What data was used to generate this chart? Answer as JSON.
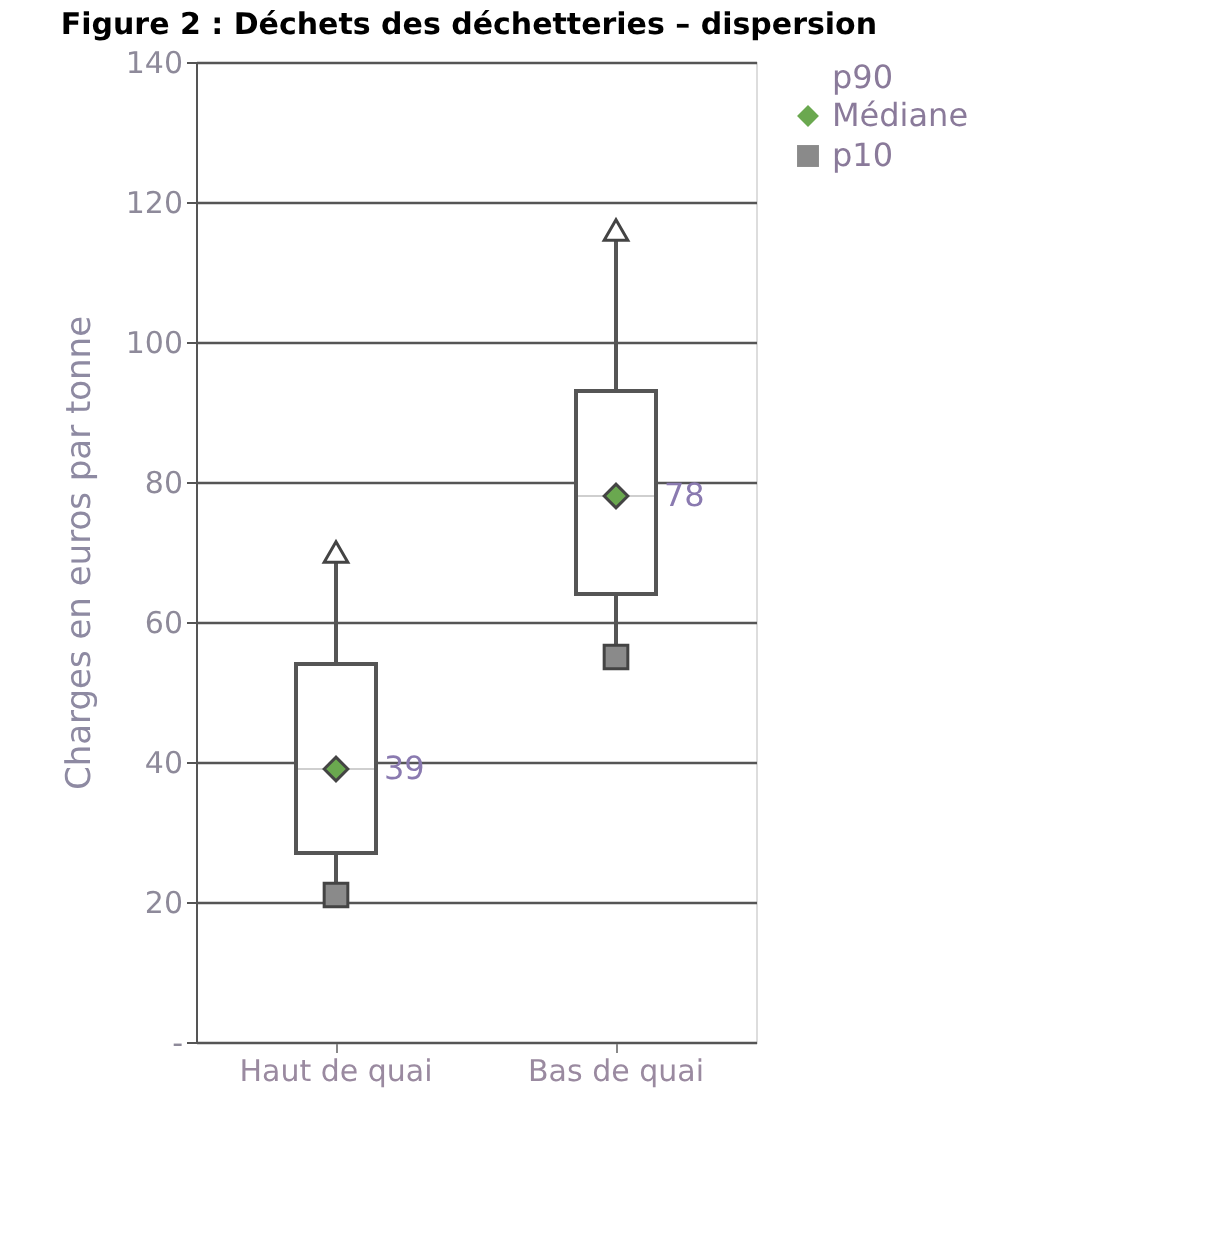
{
  "chart_data": {
    "type": "box",
    "title": "Figure 2 : Déchets des déchetteries – dispersion",
    "ylabel": "Charges en euros par tonne",
    "categories": [
      "Haut de quai",
      "Bas de quai"
    ],
    "boxes": [
      {
        "low": 21,
        "q1": 27,
        "median": 39,
        "q3": 54,
        "high": 70
      },
      {
        "low": 55,
        "q1": 64,
        "median": 78,
        "q3": 93,
        "high": 116
      }
    ],
    "series": [
      {
        "name": "p90",
        "type": "scatter",
        "x": [
          "Haut de quai",
          "Bas de quai"
        ],
        "values": [
          70,
          116
        ],
        "color": "#ffffff",
        "marker": "triangle"
      },
      {
        "name": "Médiane",
        "type": "scatter",
        "x": [
          "Haut de quai",
          "Bas de quai"
        ],
        "values": [
          39,
          78
        ],
        "color": "#6aa84f",
        "marker": "diamond",
        "value_labels": [
          "39",
          "78"
        ]
      },
      {
        "name": "p10",
        "type": "scatter",
        "x": [
          "Haut de quai",
          "Bas de quai"
        ],
        "values": [
          21,
          55
        ],
        "color": "#8a8a8a",
        "marker": "square"
      }
    ],
    "ylim": [
      0,
      140
    ],
    "yticks": [
      {
        "value": 0,
        "label": "-"
      },
      20,
      40,
      60,
      80,
      100,
      120,
      140
    ],
    "grid": "y",
    "legend": "right"
  }
}
